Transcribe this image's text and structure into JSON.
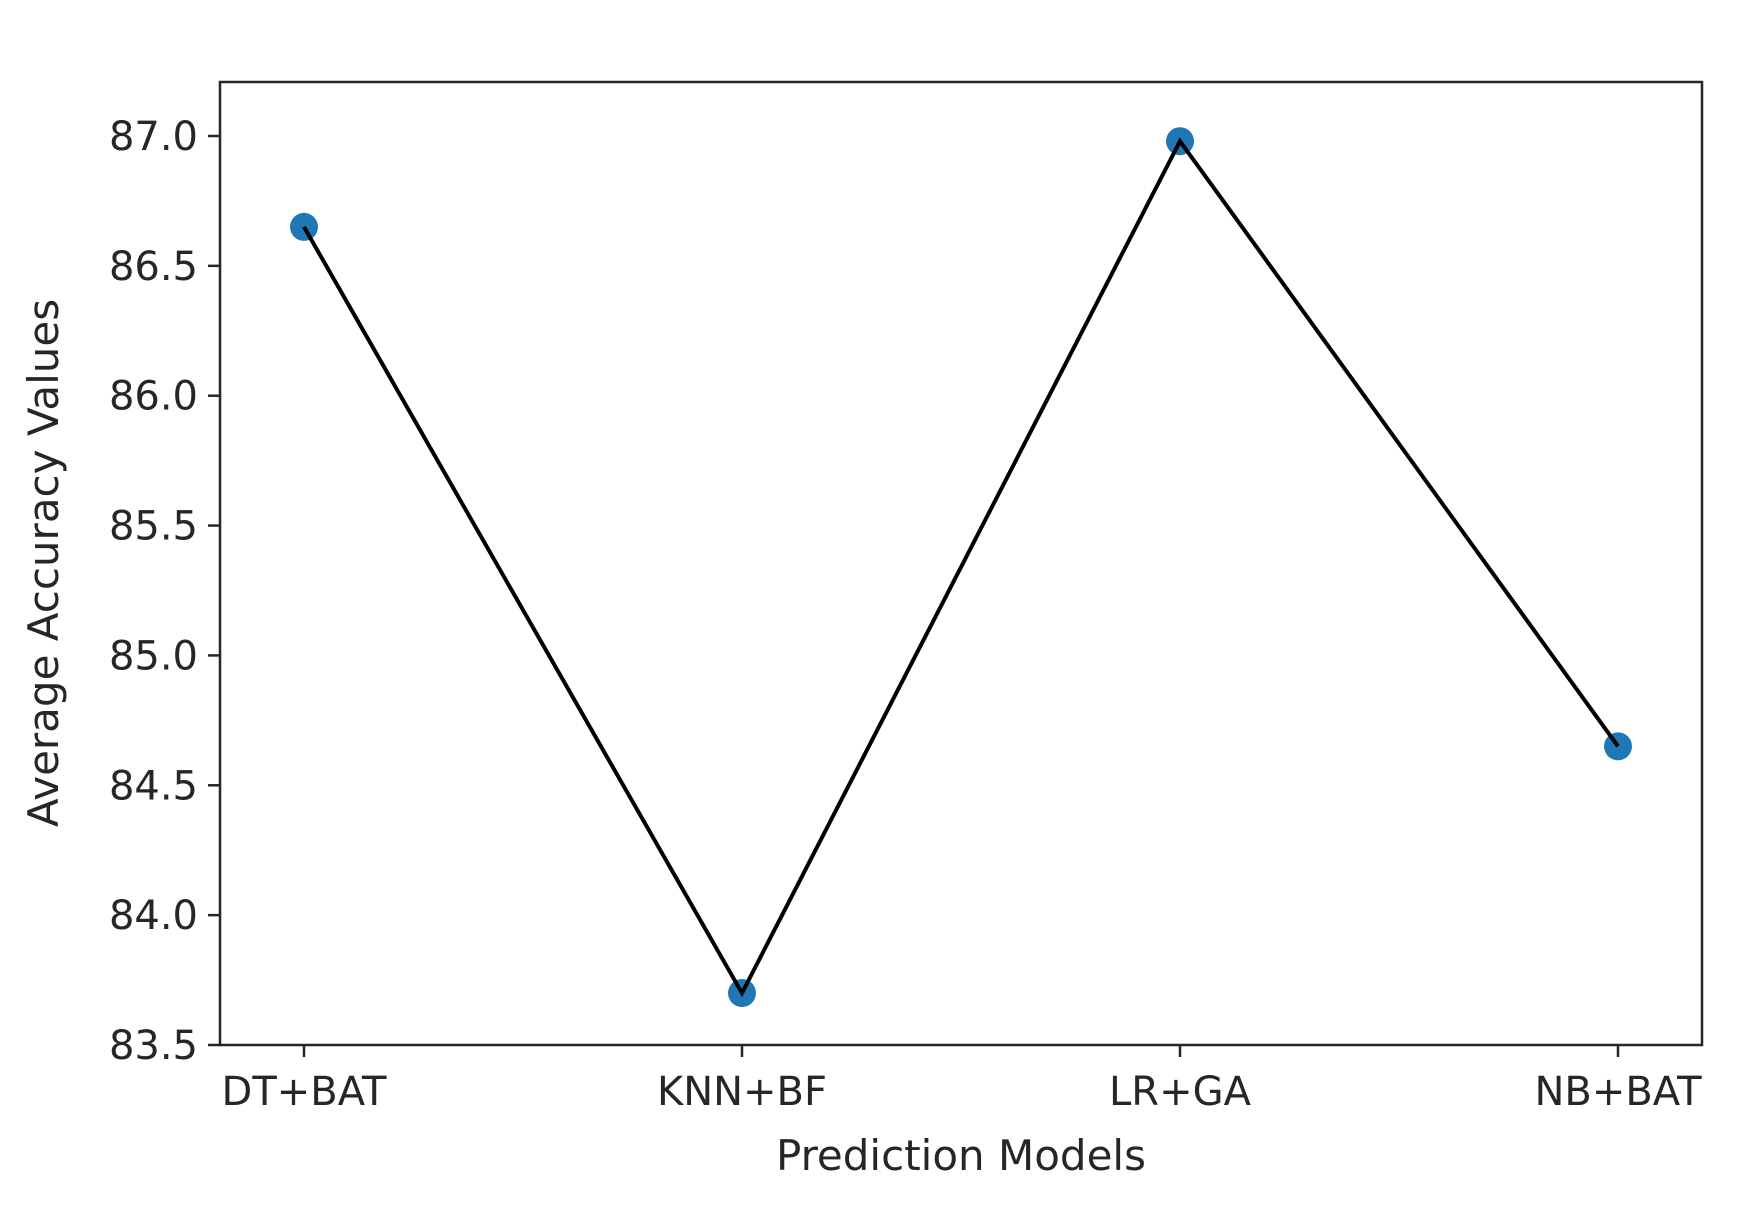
{
  "chart_data": {
    "type": "line",
    "title": "",
    "xlabel": "Prediction Models",
    "ylabel": "Average Accuracy Values",
    "categories": [
      "DT+BAT",
      "KNN+BF",
      "LR+GA",
      "NB+BAT"
    ],
    "series": [
      {
        "values": [
          86.65,
          83.7,
          86.98,
          84.65
        ]
      }
    ],
    "ylim": [
      83.5,
      87.2
    ],
    "yticks": [
      83.5,
      84.0,
      84.5,
      85.0,
      85.5,
      86.0,
      86.5,
      87.0
    ],
    "ytick_labels": [
      "83.5",
      "84.0",
      "84.5",
      "85.0",
      "85.5",
      "86.0",
      "86.5",
      "87.0"
    ],
    "grid": false,
    "colors": {
      "marker": "#1f77b4",
      "line": "#000000",
      "axes": "#262626"
    }
  }
}
